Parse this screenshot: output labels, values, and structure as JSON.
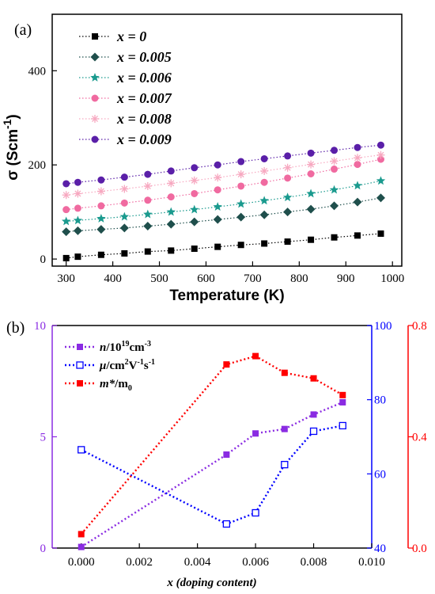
{
  "chart_data": [
    {
      "panel": "(a)",
      "type": "scatter",
      "xlabel": "Temperature (K)",
      "ylabel": "σ (Scm-1)",
      "xlim": [
        270,
        1020
      ],
      "ylim": [
        -15,
        520
      ],
      "xticks": [
        300,
        400,
        500,
        600,
        700,
        800,
        900,
        1000
      ],
      "yticks": [
        0,
        200,
        400
      ],
      "grid": false,
      "legend_position": "top-left",
      "x": [
        300,
        325,
        375,
        425,
        475,
        525,
        575,
        625,
        675,
        725,
        775,
        825,
        875,
        925,
        975
      ],
      "series": [
        {
          "name": "x = 0",
          "color": "#000000",
          "marker": "square",
          "values": [
            2,
            5,
            9,
            12,
            16,
            18,
            22,
            26,
            30,
            33,
            37,
            41,
            46,
            50,
            54
          ]
        },
        {
          "name": "x = 0.005",
          "color": "#1f4f4c",
          "marker": "diamond",
          "values": [
            58,
            60,
            63,
            66,
            70,
            74,
            79,
            84,
            89,
            94,
            100,
            106,
            113,
            121,
            130
          ]
        },
        {
          "name": "x = 0.006",
          "color": "#1a9a8e",
          "marker": "star",
          "values": [
            80,
            82,
            86,
            90,
            95,
            100,
            105,
            111,
            117,
            124,
            131,
            139,
            147,
            156,
            166
          ]
        },
        {
          "name": "x = 0.007",
          "color": "#f06aa0",
          "marker": "circle",
          "values": [
            105,
            108,
            113,
            119,
            125,
            132,
            139,
            147,
            155,
            163,
            172,
            181,
            191,
            201,
            212
          ]
        },
        {
          "name": "x = 0.008",
          "color": "#f7a8c0",
          "marker": "asterisk",
          "values": [
            136,
            139,
            144,
            149,
            155,
            161,
            167,
            173,
            180,
            187,
            194,
            201,
            208,
            215,
            221
          ]
        },
        {
          "name": "x = 0.009",
          "color": "#5a1fa8",
          "marker": "circle",
          "values": [
            160,
            163,
            168,
            174,
            180,
            187,
            194,
            200,
            207,
            213,
            219,
            225,
            231,
            237,
            242
          ]
        }
      ]
    },
    {
      "panel": "(b)",
      "type": "line",
      "xlabel": "x (doping content)",
      "xlim": [
        -0.001,
        0.01
      ],
      "xticks": [
        "0.000",
        "0.002",
        "0.004",
        "0.006",
        "0.008",
        "0.010"
      ],
      "left_axis": {
        "ylim": [
          0,
          10
        ],
        "yticks": [
          0,
          5,
          10
        ],
        "color": "#8a2be2"
      },
      "right_axis_1": {
        "ylim": [
          40,
          100
        ],
        "yticks": [
          40,
          60,
          80,
          100
        ],
        "color": "#0000ff"
      },
      "right_axis_2": {
        "ylim": [
          0,
          0.8
        ],
        "yticks": [
          "0.0",
          "0.4",
          "0.8"
        ],
        "color": "#ff0000"
      },
      "grid": false,
      "legend_position": "top-left",
      "x": [
        0,
        0.005,
        0.006,
        0.007,
        0.008,
        0.009
      ],
      "series": [
        {
          "name_main": "n",
          "name_rest": "/10",
          "sup1": "19",
          "name_rest2": "cm",
          "sup2": "-3",
          "axis": "left",
          "color": "#8a2be2",
          "marker": "square-filled",
          "values": [
            0.05,
            4.2,
            5.15,
            5.35,
            6.0,
            6.55
          ]
        },
        {
          "name_main": "μ",
          "name_rest": "/cm",
          "sup1": "2",
          "name_rest2": "V",
          "sup2": "-1",
          "name_rest3": "s",
          "sup3": "-1",
          "axis": "right1",
          "color": "#0000ff",
          "marker": "square-open",
          "values": [
            66.5,
            46.5,
            49.5,
            62.5,
            71.5,
            73.0
          ]
        },
        {
          "name_main": "m*",
          "name_rest": "/m",
          "sub1": "0",
          "axis": "right2",
          "color": "#ff0000",
          "marker": "square-filled",
          "values": [
            0.05,
            0.66,
            0.69,
            0.63,
            0.61,
            0.55
          ]
        }
      ]
    }
  ]
}
